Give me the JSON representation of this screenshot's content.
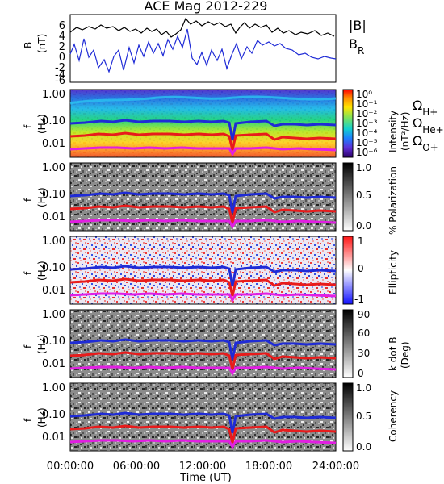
{
  "chart_data": {
    "title": "ACE Mag 2012-229",
    "x_axis": {
      "label": "Time (UT)",
      "ticks": [
        "00:00:00",
        "06:00:00",
        "12:00:00",
        "18:00:00",
        "24:00:00"
      ]
    },
    "panels": [
      {
        "type": "line",
        "ylabel": "B\n(nT)",
        "yticks": [
          "6",
          "4",
          "2",
          "0",
          "-2",
          "-4",
          "-6"
        ],
        "legend": [
          {
            "label": "|B|",
            "color": "#000000"
          },
          {
            "label": "B_R",
            "color": "#1f2bd6"
          }
        ]
      },
      {
        "type": "heatmap",
        "ylabel": "f\n(Hz)",
        "yticks": [
          "1.00",
          "0.10",
          "0.01"
        ],
        "colorbar_label": "Intensity\n(nT²/Hz)",
        "colorbar_ticks": [
          "10⁰",
          "10⁻¹",
          "10⁻²",
          "10⁻³",
          "10⁻⁴",
          "10⁻⁵",
          "10⁻⁶"
        ],
        "colormap": "rainbow",
        "lines_legend": [
          {
            "label": "Ω_H+",
            "color": "#1f2bd6"
          },
          {
            "label": "Ω_He+",
            "color": "#e81b1b"
          },
          {
            "label": "Ω_O+",
            "color": "#e21ee2"
          }
        ]
      },
      {
        "type": "heatmap",
        "ylabel": "f\n(Hz)",
        "yticks": [
          "1.00",
          "0.10",
          "0.01"
        ],
        "colorbar_label": "% Polarization",
        "colorbar_ticks": [
          "1.0",
          "0.5",
          "0.0"
        ],
        "colormap": "gray"
      },
      {
        "type": "heatmap",
        "ylabel": "f\n(Hz)",
        "yticks": [
          "1.00",
          "0.10",
          "0.01"
        ],
        "colorbar_label": "Ellipticity",
        "colorbar_ticks": [
          "1",
          "0",
          "-1"
        ],
        "colormap": "red-white-blue"
      },
      {
        "type": "heatmap",
        "ylabel": "f\n(Hz)",
        "yticks": [
          "1.00",
          "0.10",
          "0.01"
        ],
        "colorbar_label": "k dot B\n(Deg)",
        "colorbar_ticks": [
          "90",
          "60",
          "30",
          "0"
        ],
        "colormap": "gray"
      },
      {
        "type": "heatmap",
        "ylabel": "f\n(Hz)",
        "yticks": [
          "1.00",
          "0.10",
          "0.01"
        ],
        "colorbar_label": "Coherency",
        "colorbar_ticks": [
          "1.0",
          "0.5",
          "0.0"
        ],
        "colormap": "gray"
      }
    ]
  }
}
